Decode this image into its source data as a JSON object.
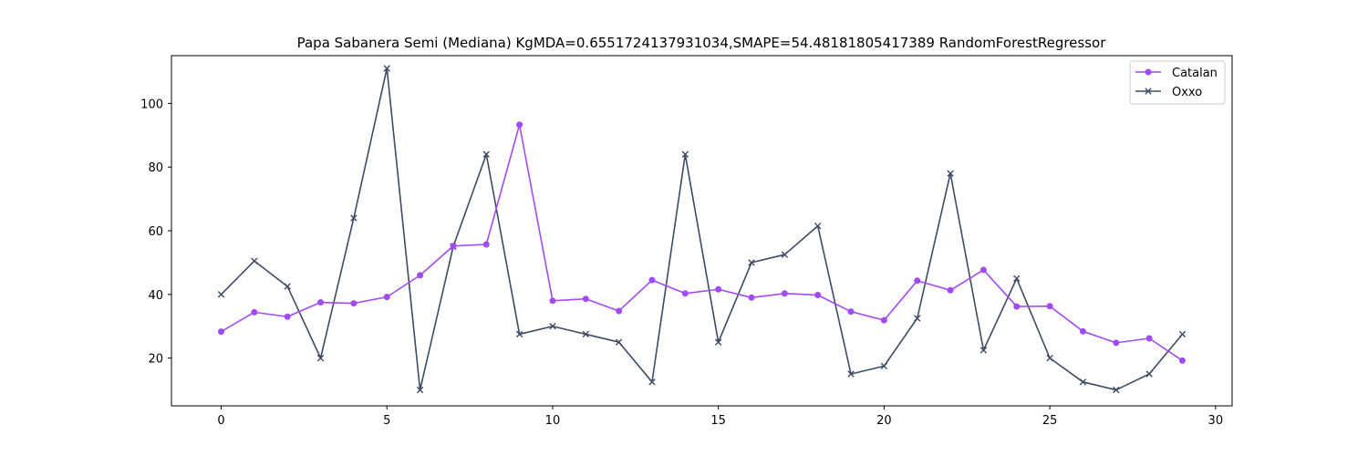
{
  "chart_data": {
    "type": "line",
    "title": "Papa Sabanera Semi (Mediana) KgMDA=0.6551724137931034,SMAPE=54.48181805417389 RandomForestRegressor",
    "xlabel": "",
    "ylabel": "",
    "x": [
      0,
      1,
      2,
      3,
      4,
      5,
      6,
      7,
      8,
      9,
      10,
      11,
      12,
      13,
      14,
      15,
      16,
      17,
      18,
      19,
      20,
      21,
      22,
      23,
      24,
      25,
      26,
      27,
      28,
      29
    ],
    "xlim": [
      -1.5,
      30.5
    ],
    "ylim": [
      5,
      115
    ],
    "xticks": [
      0,
      5,
      10,
      15,
      20,
      25,
      30
    ],
    "yticks": [
      20,
      40,
      60,
      80,
      100
    ],
    "grid": false,
    "legend_position": "top-right",
    "series": [
      {
        "name": "Catalan",
        "color": "#a14cf2",
        "marker": "circle",
        "values": [
          28.3,
          34.4,
          33.0,
          37.5,
          37.2,
          39.2,
          46.0,
          55.2,
          55.7,
          93.3,
          38.0,
          38.6,
          34.8,
          44.5,
          40.3,
          41.6,
          39.0,
          40.3,
          39.8,
          34.6,
          31.9,
          44.3,
          41.3,
          47.7,
          36.2,
          36.3,
          28.4,
          24.8,
          26.2,
          19.2
        ]
      },
      {
        "name": "Oxxo",
        "color": "#3d4b63",
        "marker": "x",
        "values": [
          40.0,
          50.5,
          42.5,
          20.0,
          64.0,
          111.0,
          10.0,
          55.0,
          84.0,
          27.5,
          30.0,
          27.5,
          25.0,
          12.5,
          84.0,
          25.0,
          50.0,
          52.5,
          61.5,
          15.0,
          17.5,
          32.5,
          78.0,
          22.5,
          45.0,
          20.0,
          12.5,
          10.0,
          15.0,
          27.5
        ]
      }
    ]
  }
}
